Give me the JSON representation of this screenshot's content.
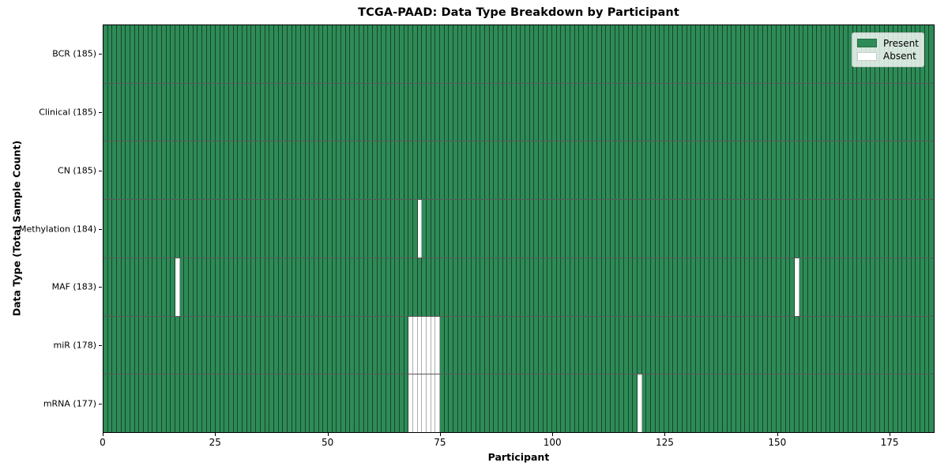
{
  "chart_data": {
    "type": "heatmap",
    "title": "TCGA-PAAD: Data Type Breakdown by Participant",
    "xlabel": "Participant",
    "ylabel": "Data Type (Total Sample Count)",
    "n_participants": 185,
    "xlim": [
      0,
      185
    ],
    "xticks": [
      0,
      25,
      50,
      75,
      100,
      125,
      150,
      175
    ],
    "grid": false,
    "legend_position": "upper right",
    "legend": [
      {
        "label": "Present",
        "color": "#2e8b57"
      },
      {
        "label": "Absent",
        "color": "#ffffff"
      }
    ],
    "rows": [
      {
        "label": "BCR (185)",
        "data_type": "BCR",
        "total_samples": 185,
        "absent_participants": []
      },
      {
        "label": "Clinical (185)",
        "data_type": "Clinical",
        "total_samples": 185,
        "absent_participants": []
      },
      {
        "label": "CN (185)",
        "data_type": "CN",
        "total_samples": 185,
        "absent_participants": []
      },
      {
        "label": "Methylation (184)",
        "data_type": "Methylation",
        "total_samples": 184,
        "absent_participants": [
          70
        ]
      },
      {
        "label": "MAF (183)",
        "data_type": "MAF",
        "total_samples": 183,
        "absent_participants": [
          16,
          154
        ]
      },
      {
        "label": "miR (178)",
        "data_type": "miR",
        "total_samples": 178,
        "absent_participants": [
          68,
          69,
          70,
          71,
          72,
          73,
          74
        ]
      },
      {
        "label": "mRNA (177)",
        "data_type": "mRNA",
        "total_samples": 177,
        "absent_participants": [
          68,
          69,
          70,
          71,
          72,
          73,
          74,
          119
        ]
      }
    ],
    "colors": {
      "present": "#2e8b57",
      "absent": "#ffffff",
      "cell_edge_present": "rgba(0,0,0,0.5)",
      "cell_edge_absent": "rgba(0,0,0,0.32)",
      "row_divider": "rgba(0,0,0,0.65)",
      "axes_border": "#000000"
    }
  }
}
